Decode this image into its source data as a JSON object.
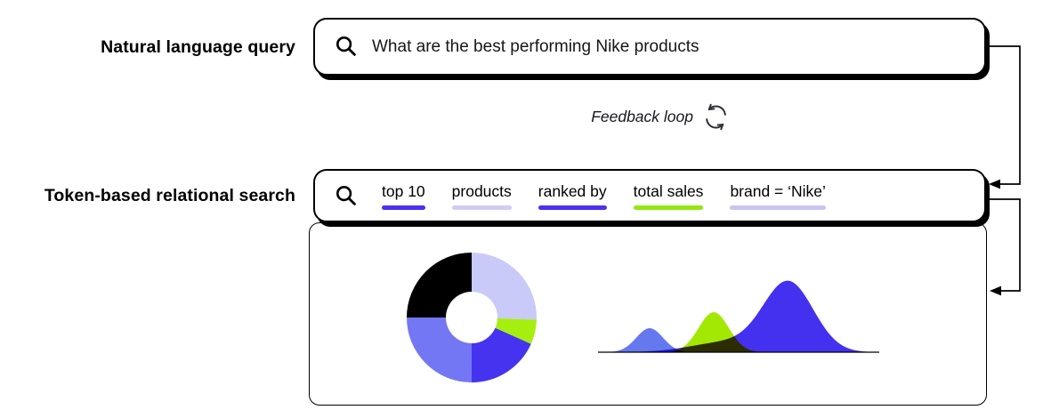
{
  "labels": {
    "nl": "Natural language query",
    "tok": "Token-based relational search",
    "feedback": "Feedback loop"
  },
  "nl_box": {
    "query": "What are the best performing Nike products"
  },
  "token_box": {
    "tokens": [
      {
        "text": "top 10",
        "underline": "#4c2ff2"
      },
      {
        "text": "products",
        "underline": "#cfccf6"
      },
      {
        "text": "ranked by",
        "underline": "#4c2ff2"
      },
      {
        "text": "total sales",
        "underline": "#93e80e"
      },
      {
        "text": "brand = ‘Nike’",
        "underline": "#c6c5f2"
      }
    ]
  },
  "icons": {
    "nl_search": "magnifier-icon",
    "token_search": "magnifier-icon",
    "feedback": "cycle-arrows-icon"
  },
  "chart_data": [
    {
      "type": "pie",
      "subtype": "donut",
      "description": "results preview donut chart (unlabeled)",
      "inner_radius_ratio": 0.4,
      "legend": false,
      "segments": [
        {
          "start_deg": 0,
          "end_deg": 92,
          "share_pct": 25.6,
          "color": "#c9caf7"
        },
        {
          "start_deg": 92,
          "end_deg": 114,
          "share_pct": 6.1,
          "color": "#a6ee0e"
        },
        {
          "start_deg": 114,
          "end_deg": 180,
          "share_pct": 18.3,
          "color": "#4533f0"
        },
        {
          "start_deg": 180,
          "end_deg": 270,
          "share_pct": 25.0,
          "color": "#7477f3"
        },
        {
          "start_deg": 270,
          "end_deg": 360,
          "share_pct": 25.0,
          "color": "#000000"
        }
      ]
    },
    {
      "type": "area",
      "subtype": "density",
      "description": "results preview overlapping density curves (unlabeled)",
      "blend": "multiply",
      "grid": false,
      "baseline": {
        "x0": 6,
        "x1": 322,
        "y": 98
      },
      "series": [
        {
          "name": "small-left-curve",
          "color": "#6678ee",
          "modes": [
            {
              "center": 64,
              "height": 27,
              "sigma": 15
            }
          ]
        },
        {
          "name": "middle-curve",
          "color": "#a3e804",
          "modes": [
            {
              "center": 136,
              "height": 45,
              "sigma": 17
            }
          ]
        },
        {
          "name": "large-right-curve",
          "color": "#4431ef",
          "modes": [
            {
              "center": 220,
              "height": 78,
              "sigma": 28
            },
            {
              "center": 150,
              "height": 11,
              "sigma": 40
            }
          ]
        }
      ]
    }
  ]
}
